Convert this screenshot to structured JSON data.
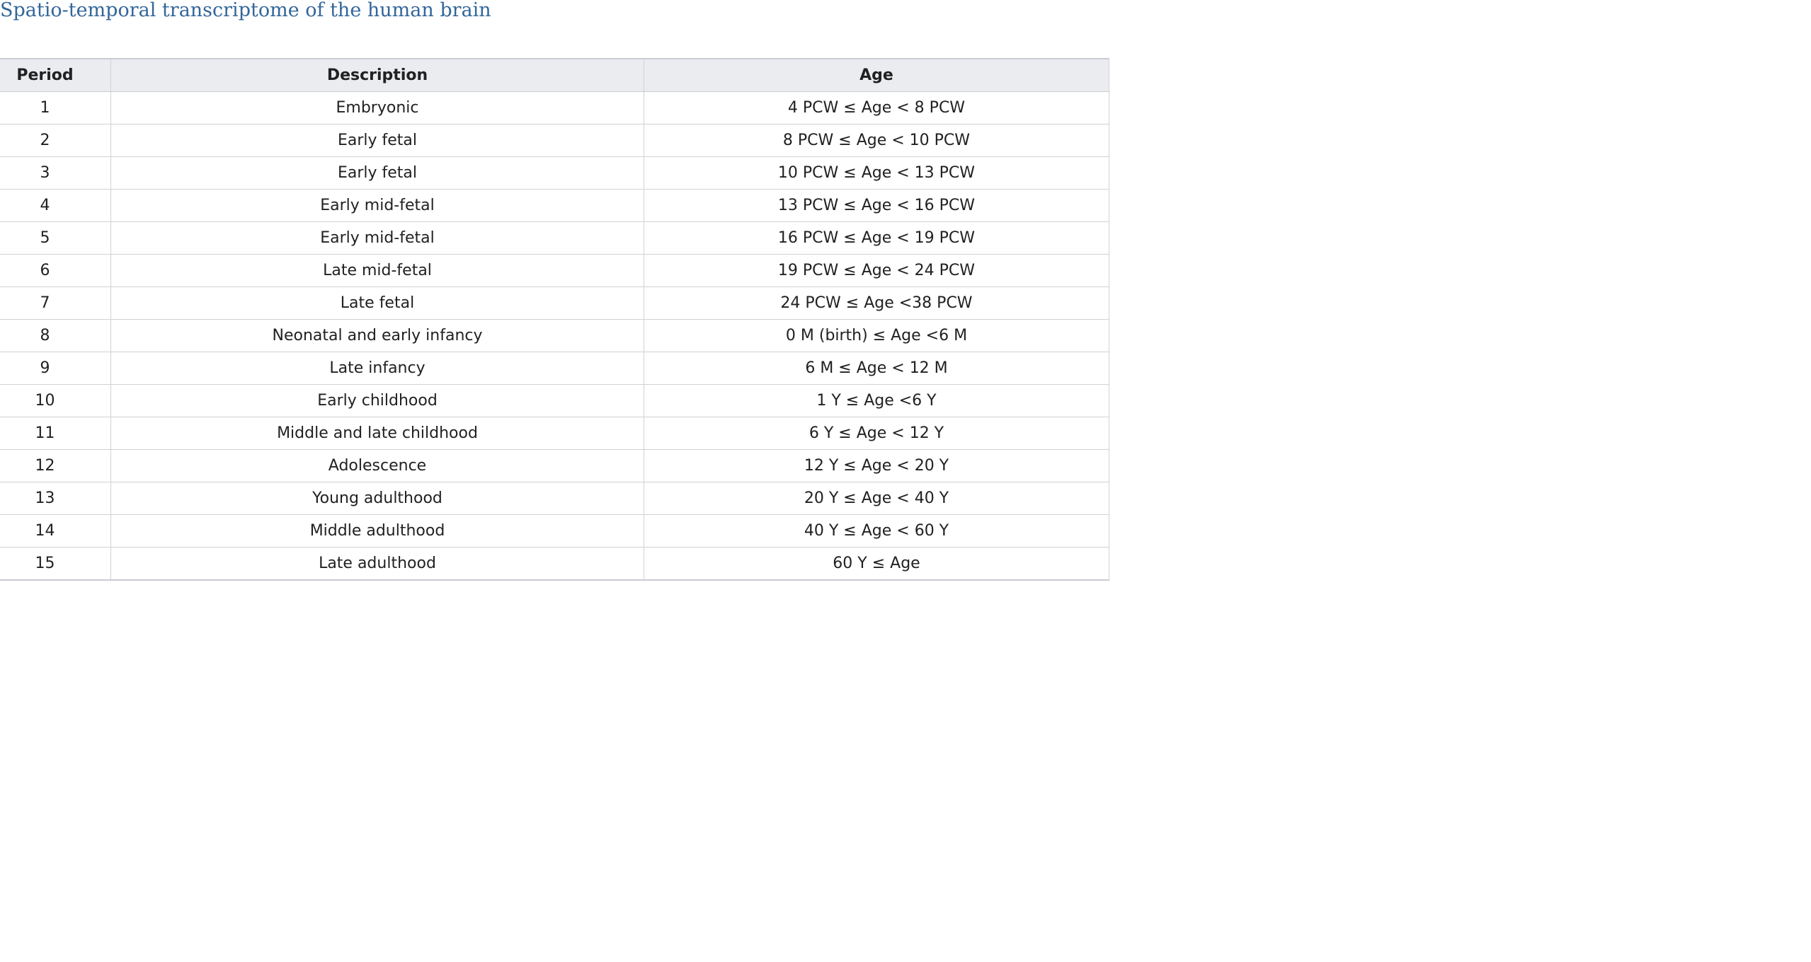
{
  "page": {
    "title": "Spatio-temporal transcriptome of the human brain"
  },
  "table": {
    "headers": {
      "stage": "Period",
      "description": "Description",
      "age": "Age"
    },
    "rows": [
      {
        "stage": "1",
        "description": "Embryonic",
        "age": "4 PCW ≤ Age < 8 PCW"
      },
      {
        "stage": "2",
        "description": "Early fetal",
        "age": "8 PCW ≤ Age < 10 PCW"
      },
      {
        "stage": "3",
        "description": "Early fetal",
        "age": "10 PCW ≤ Age < 13 PCW"
      },
      {
        "stage": "4",
        "description": "Early mid-fetal",
        "age": "13 PCW ≤ Age < 16 PCW"
      },
      {
        "stage": "5",
        "description": "Early mid-fetal",
        "age": "16 PCW ≤ Age < 19 PCW"
      },
      {
        "stage": "6",
        "description": "Late mid-fetal",
        "age": "19 PCW ≤ Age < 24 PCW"
      },
      {
        "stage": "7",
        "description": "Late fetal",
        "age": "24 PCW ≤ Age <38 PCW"
      },
      {
        "stage": "8",
        "description": "Neonatal and early infancy",
        "age": "0 M (birth) ≤ Age <6 M"
      },
      {
        "stage": "9",
        "description": "Late infancy",
        "age": "6 M ≤ Age < 12 M"
      },
      {
        "stage": "10",
        "description": "Early childhood",
        "age": "1 Y ≤ Age <6 Y"
      },
      {
        "stage": "11",
        "description": "Middle and late childhood",
        "age": "6 Y ≤ Age < 12 Y"
      },
      {
        "stage": "12",
        "description": "Adolescence",
        "age": "12 Y ≤ Age < 20 Y"
      },
      {
        "stage": "13",
        "description": "Young adulthood",
        "age": "20 Y ≤ Age < 40 Y"
      },
      {
        "stage": "14",
        "description": "Middle adulthood",
        "age": "40 Y ≤ Age < 60 Y"
      },
      {
        "stage": "15",
        "description": "Late adulthood",
        "age": "60 Y ≤ Age"
      }
    ]
  }
}
